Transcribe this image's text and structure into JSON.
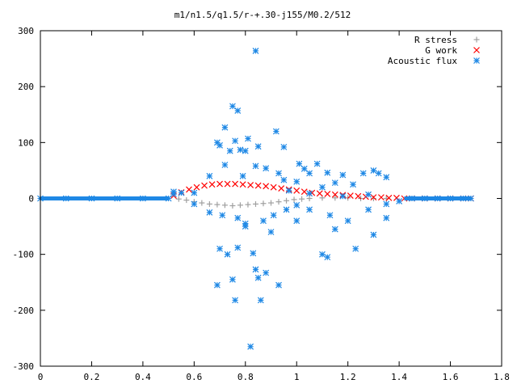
{
  "chart_data": {
    "type": "scatter",
    "title": "m1/n1.5/q1.5/r-+.30-j155/M0.2/512",
    "xlabel": "",
    "ylabel": "",
    "xlim": [
      0,
      1.8
    ],
    "ylim": [
      -300,
      300
    ],
    "xticks": [
      0,
      0.2,
      0.4,
      0.6,
      0.8,
      1,
      1.2,
      1.4,
      1.6,
      1.8
    ],
    "xtick_labels": [
      "0",
      "0.2",
      "0.4",
      "0.6",
      "0.8",
      "1",
      "1.2",
      "1.4",
      "1.6",
      "1.8"
    ],
    "yticks": [
      -300,
      -200,
      -100,
      0,
      100,
      200,
      300
    ],
    "ytick_labels": [
      "-300",
      "-200",
      "-100",
      "0",
      "100",
      "200",
      "300"
    ],
    "grid": false,
    "legend_position": "top-right",
    "series": [
      {
        "name": "R stress",
        "marker": "plus",
        "color": "#a0a0a0",
        "points": [
          [
            0.54,
            -1
          ],
          [
            0.57,
            -3
          ],
          [
            0.6,
            -6
          ],
          [
            0.63,
            -8
          ],
          [
            0.66,
            -10
          ],
          [
            0.69,
            -11
          ],
          [
            0.72,
            -12
          ],
          [
            0.75,
            -13
          ],
          [
            0.78,
            -12
          ],
          [
            0.81,
            -11
          ],
          [
            0.84,
            -10
          ],
          [
            0.87,
            -9
          ],
          [
            0.9,
            -8
          ],
          [
            0.93,
            -6
          ],
          [
            0.96,
            -4
          ],
          [
            0.99,
            -2
          ],
          [
            1.02,
            -1
          ],
          [
            1.05,
            0
          ],
          [
            1.1,
            1
          ],
          [
            1.15,
            1
          ],
          [
            1.2,
            1
          ],
          [
            1.25,
            0
          ],
          [
            1.3,
            0
          ],
          [
            1.35,
            0
          ]
        ]
      },
      {
        "name": "G work",
        "marker": "cross",
        "color": "#ff0000",
        "points": [
          [
            0.52,
            5
          ],
          [
            0.55,
            11
          ],
          [
            0.58,
            16
          ],
          [
            0.61,
            20
          ],
          [
            0.64,
            23
          ],
          [
            0.67,
            25
          ],
          [
            0.7,
            26
          ],
          [
            0.73,
            26
          ],
          [
            0.76,
            26
          ],
          [
            0.79,
            25
          ],
          [
            0.82,
            24
          ],
          [
            0.85,
            23
          ],
          [
            0.88,
            22
          ],
          [
            0.91,
            20
          ],
          [
            0.94,
            18
          ],
          [
            0.97,
            16
          ],
          [
            1,
            14
          ],
          [
            1.03,
            12
          ],
          [
            1.06,
            10
          ],
          [
            1.09,
            9
          ],
          [
            1.12,
            8
          ],
          [
            1.15,
            7
          ],
          [
            1.18,
            6
          ],
          [
            1.21,
            5
          ],
          [
            1.24,
            4
          ],
          [
            1.27,
            3
          ],
          [
            1.3,
            2
          ],
          [
            1.33,
            2
          ],
          [
            1.36,
            1
          ],
          [
            1.39,
            1
          ],
          [
            1.42,
            0
          ],
          [
            1.45,
            0
          ],
          [
            1.5,
            0
          ],
          [
            1.55,
            0
          ],
          [
            1.6,
            0
          ],
          [
            1.65,
            0
          ],
          [
            1.68,
            0
          ]
        ]
      },
      {
        "name": "Acoustic flux",
        "marker": "star",
        "color": "#1e88e5",
        "points": [
          [
            0.84,
            264
          ],
          [
            0.75,
            165
          ],
          [
            0.77,
            157
          ],
          [
            0.72,
            127
          ],
          [
            0.92,
            120
          ],
          [
            0.81,
            107
          ],
          [
            0.76,
            103
          ],
          [
            0.69,
            100
          ],
          [
            0.7,
            95
          ],
          [
            0.85,
            93
          ],
          [
            0.95,
            92
          ],
          [
            0.78,
            87
          ],
          [
            0.8,
            85
          ],
          [
            0.74,
            85
          ],
          [
            0.72,
            60
          ],
          [
            1.01,
            62
          ],
          [
            1.08,
            62
          ],
          [
            0.84,
            58
          ],
          [
            0.88,
            54
          ],
          [
            1.03,
            53
          ],
          [
            1.12,
            46
          ],
          [
            1.05,
            45
          ],
          [
            0.93,
            45
          ],
          [
            0.66,
            40
          ],
          [
            0.79,
            40
          ],
          [
            1.18,
            42
          ],
          [
            1.26,
            45
          ],
          [
            1.3,
            50
          ],
          [
            1.32,
            45
          ],
          [
            1.35,
            38
          ],
          [
            0.95,
            33
          ],
          [
            1.0,
            30
          ],
          [
            1.15,
            28
          ],
          [
            1.22,
            25
          ],
          [
            1.1,
            20
          ],
          [
            0.97,
            14
          ],
          [
            1.05,
            9
          ],
          [
            1.18,
            4
          ],
          [
            1.28,
            7
          ],
          [
            0.66,
            -25
          ],
          [
            0.71,
            -30
          ],
          [
            0.77,
            -35
          ],
          [
            0.8,
            -45
          ],
          [
            0.8,
            -50
          ],
          [
            0.87,
            -40
          ],
          [
            0.91,
            -30
          ],
          [
            0.96,
            -20
          ],
          [
            1.0,
            -12
          ],
          [
            1.05,
            -20
          ],
          [
            1.13,
            -30
          ],
          [
            1.2,
            -40
          ],
          [
            1.28,
            -20
          ],
          [
            1.35,
            -35
          ],
          [
            0.7,
            -90
          ],
          [
            0.73,
            -100
          ],
          [
            0.77,
            -88
          ],
          [
            0.83,
            -98
          ],
          [
            0.84,
            -127
          ],
          [
            0.85,
            -142
          ],
          [
            0.88,
            -133
          ],
          [
            0.93,
            -155
          ],
          [
            0.75,
            -145
          ],
          [
            0.76,
            -182
          ],
          [
            0.86,
            -182
          ],
          [
            0.69,
            -155
          ],
          [
            0.82,
            -265
          ],
          [
            1.1,
            -100
          ],
          [
            1.12,
            -105
          ],
          [
            1.23,
            -90
          ],
          [
            1.3,
            -65
          ],
          [
            0.9,
            -60
          ],
          [
            1.0,
            -40
          ],
          [
            1.15,
            -55
          ],
          [
            1.35,
            -10
          ],
          [
            1.4,
            -5
          ],
          [
            0.6,
            10
          ],
          [
            0.6,
            -10
          ],
          [
            0.55,
            10
          ],
          [
            0.52,
            12
          ],
          [
            0.52,
            8
          ],
          [
            0,
            0
          ],
          [
            0.1,
            0
          ],
          [
            0.2,
            0
          ],
          [
            0.3,
            0
          ],
          [
            0.4,
            0
          ],
          [
            0.5,
            0
          ],
          [
            1.45,
            0
          ],
          [
            1.5,
            0
          ],
          [
            1.55,
            0
          ],
          [
            1.6,
            0
          ],
          [
            1.65,
            0
          ],
          [
            1.68,
            0
          ]
        ]
      }
    ]
  }
}
